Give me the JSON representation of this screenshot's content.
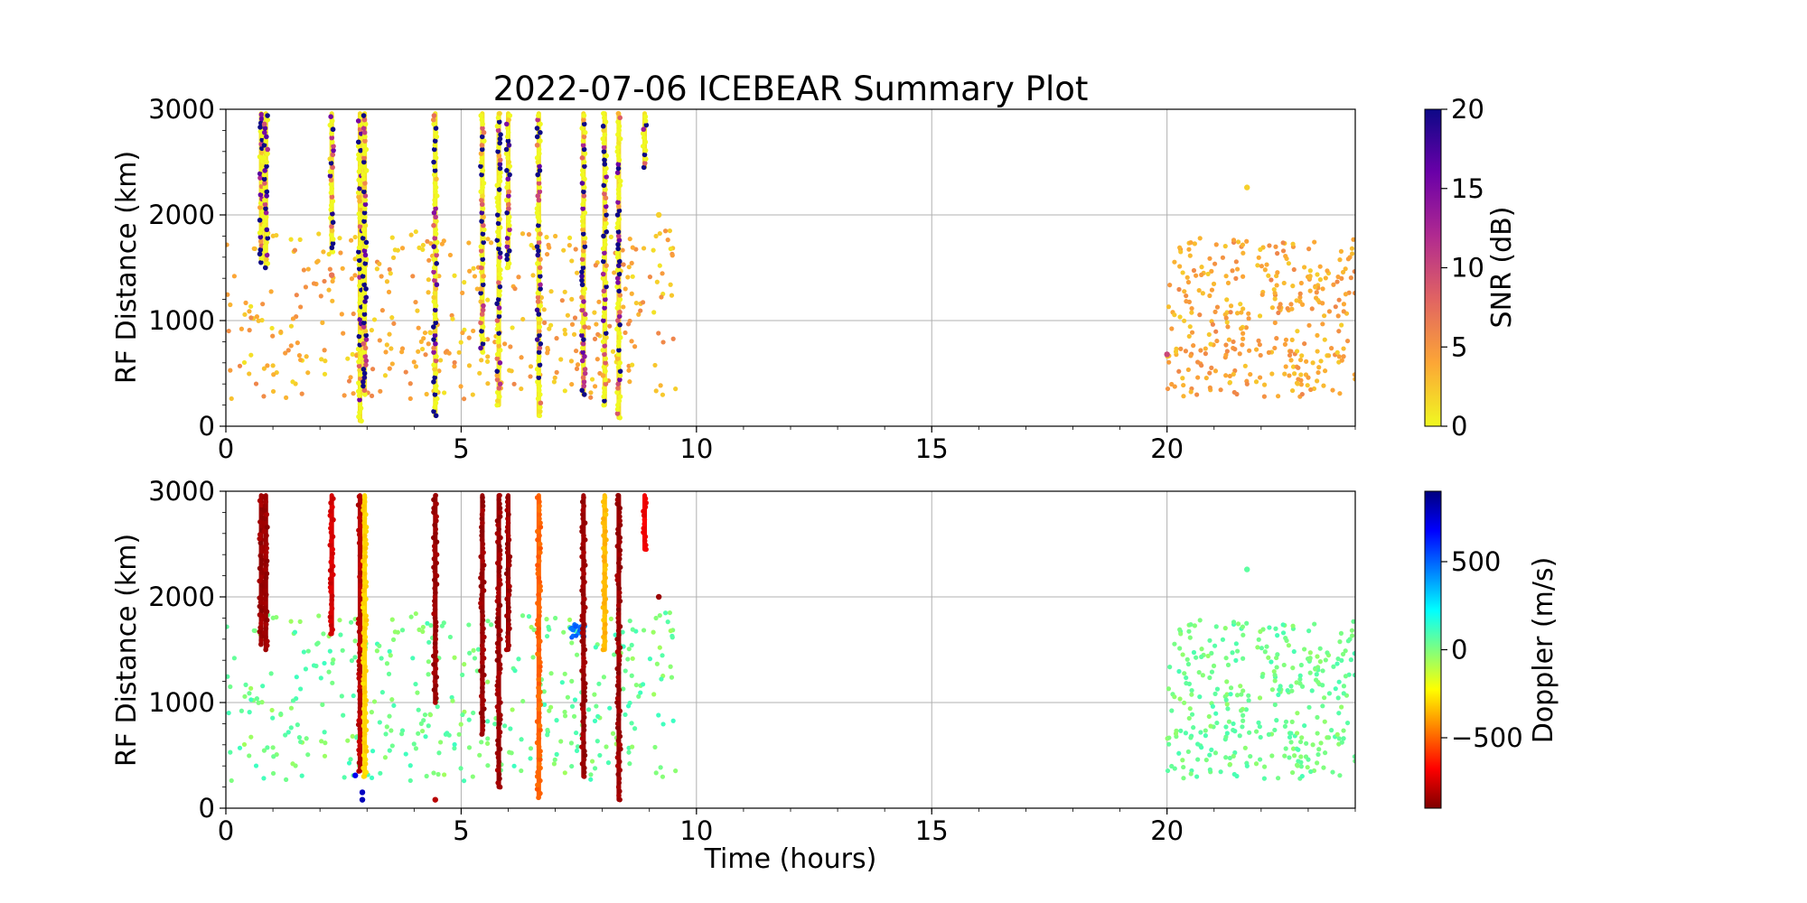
{
  "figure": {
    "title": "2022-07-06 ICEBEAR Summary Plot",
    "xlabel": "Time (hours)"
  },
  "chart_data": [
    {
      "type": "scatter",
      "panel": "top",
      "title": "2022-07-06 ICEBEAR Summary Plot",
      "xlabel": "",
      "ylabel": "RF Distance (km)",
      "xlim": [
        0,
        24
      ],
      "ylim": [
        0,
        3000
      ],
      "x_ticks": [
        "0",
        "5",
        "10",
        "15",
        "20"
      ],
      "y_ticks": [
        "0",
        "1000",
        "2000",
        "3000"
      ],
      "grid": true,
      "color_by": "SNR",
      "colorbar": {
        "label": "SNR (dB)",
        "range": [
          0,
          20
        ],
        "ticks": [
          "0",
          "5",
          "10",
          "15",
          "20"
        ],
        "colormap": "plasma_r",
        "stops": [
          "#f0f921",
          "#fca636",
          "#e16462",
          "#b12a90",
          "#6a00a8",
          "#0d0887"
        ]
      },
      "streaks": [
        {
          "x": 0.75,
          "y0": 1550,
          "y1": 2960,
          "snr": 1
        },
        {
          "x": 0.85,
          "y0": 1500,
          "y1": 2960,
          "snr": 1
        },
        {
          "x": 2.25,
          "y0": 1650,
          "y1": 2960,
          "snr": 1
        },
        {
          "x": 2.85,
          "y0": 50,
          "y1": 2960,
          "snr": 1.5
        },
        {
          "x": 2.95,
          "y0": 300,
          "y1": 2960,
          "snr": 1
        },
        {
          "x": 4.45,
          "y0": 100,
          "y1": 2960,
          "snr": 1
        },
        {
          "x": 5.45,
          "y0": 700,
          "y1": 2960,
          "snr": 1
        },
        {
          "x": 5.8,
          "y0": 200,
          "y1": 2960,
          "snr": 1
        },
        {
          "x": 6.0,
          "y0": 1500,
          "y1": 2960,
          "snr": 1
        },
        {
          "x": 6.65,
          "y0": 100,
          "y1": 2960,
          "snr": 1
        },
        {
          "x": 7.6,
          "y0": 300,
          "y1": 2960,
          "snr": 1.5
        },
        {
          "x": 8.05,
          "y0": 200,
          "y1": 2960,
          "snr": 1.5
        },
        {
          "x": 8.35,
          "y0": 80,
          "y1": 2960,
          "snr": 1.5
        },
        {
          "x": 8.9,
          "y0": 2450,
          "y1": 2960,
          "snr": 1
        }
      ],
      "clusters": [
        {
          "t0": 0.0,
          "t1": 9.6,
          "r0": 250,
          "r1": 1850,
          "n": 380,
          "snr_min": 1,
          "snr_max": 6
        },
        {
          "t0": 20.0,
          "t1": 24.0,
          "r0": 280,
          "r1": 1780,
          "n": 330,
          "snr_min": 2,
          "snr_max": 6
        }
      ],
      "points": [
        {
          "x": 9.2,
          "y": 2000,
          "snr": 2
        },
        {
          "x": 21.7,
          "y": 2260,
          "snr": 2
        },
        {
          "x": 20.0,
          "y": 680,
          "snr": 10
        },
        {
          "x": 2.25,
          "y": 1430,
          "snr": 7
        }
      ]
    },
    {
      "type": "scatter",
      "panel": "bottom",
      "xlabel": "Time (hours)",
      "ylabel": "RF Distance (km)",
      "xlim": [
        0,
        24
      ],
      "ylim": [
        0,
        3000
      ],
      "x_ticks": [
        "0",
        "5",
        "10",
        "15",
        "20"
      ],
      "y_ticks": [
        "0",
        "1000",
        "2000",
        "3000"
      ],
      "grid": true,
      "color_by": "Doppler",
      "colorbar": {
        "label": "Doppler (m/s)",
        "range": [
          -900,
          900
        ],
        "ticks": [
          "500",
          "0",
          "−500"
        ],
        "tick_values": [
          500,
          0,
          -500
        ],
        "colormap": "jet_r",
        "stops": [
          "#7f0000",
          "#ff0000",
          "#ff7f00",
          "#ffff00",
          "#7fff7f",
          "#00ffff",
          "#007fff",
          "#0000ff",
          "#00007f"
        ]
      },
      "streaks": [
        {
          "x": 0.75,
          "y0": 1550,
          "y1": 2960,
          "doppler": -850
        },
        {
          "x": 0.85,
          "y0": 1500,
          "y1": 2960,
          "doppler": -850
        },
        {
          "x": 2.25,
          "y0": 1650,
          "y1": 2960,
          "doppler": -750
        },
        {
          "x": 2.85,
          "y0": 350,
          "y1": 2960,
          "doppler": -800
        },
        {
          "x": 2.95,
          "y0": 300,
          "y1": 2960,
          "doppler": -300
        },
        {
          "x": 4.45,
          "y0": 1000,
          "y1": 2960,
          "doppler": -850
        },
        {
          "x": 5.45,
          "y0": 700,
          "y1": 2960,
          "doppler": -850
        },
        {
          "x": 5.8,
          "y0": 200,
          "y1": 2960,
          "doppler": -850
        },
        {
          "x": 6.0,
          "y0": 1500,
          "y1": 2960,
          "doppler": -850
        },
        {
          "x": 6.65,
          "y0": 100,
          "y1": 2960,
          "doppler": -500
        },
        {
          "x": 7.6,
          "y0": 300,
          "y1": 2960,
          "doppler": -850
        },
        {
          "x": 8.05,
          "y0": 1500,
          "y1": 2960,
          "doppler": -350
        },
        {
          "x": 8.35,
          "y0": 80,
          "y1": 2960,
          "doppler": -850
        },
        {
          "x": 8.9,
          "y0": 2450,
          "y1": 2960,
          "doppler": -700
        }
      ],
      "clusters": [
        {
          "t0": 0.0,
          "t1": 9.6,
          "r0": 250,
          "r1": 1850,
          "n": 380,
          "doppler_min": -60,
          "doppler_max": 120
        },
        {
          "t0": 20.0,
          "t1": 24.0,
          "r0": 280,
          "r1": 1780,
          "n": 330,
          "doppler_min": -40,
          "doppler_max": 100
        },
        {
          "t0": 7.3,
          "t1": 7.65,
          "r0": 1600,
          "r1": 1740,
          "n": 25,
          "doppler_min": 400,
          "doppler_max": 520
        }
      ],
      "points": [
        {
          "x": 9.2,
          "y": 2000,
          "doppler": -850
        },
        {
          "x": 21.7,
          "y": 2260,
          "doppler": 60
        },
        {
          "x": 2.9,
          "y": 80,
          "doppler": 800
        },
        {
          "x": 2.9,
          "y": 150,
          "doppler": 780
        },
        {
          "x": 2.75,
          "y": 310,
          "doppler": 700
        },
        {
          "x": 4.45,
          "y": 80,
          "doppler": -800
        }
      ]
    }
  ]
}
